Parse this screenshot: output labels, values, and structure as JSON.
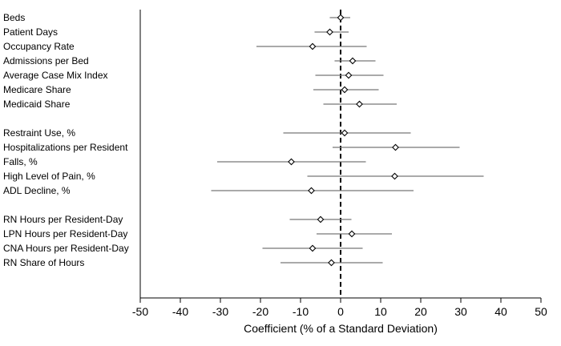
{
  "chart_data": {
    "type": "scatter",
    "title": "",
    "xlabel": "Coefficient (% of a Standard Deviation)",
    "ylabel": "",
    "xlim": [
      -50,
      50
    ],
    "xticks": [
      -50,
      -40,
      -30,
      -20,
      -10,
      0,
      10,
      20,
      30,
      40,
      50
    ],
    "reference_line": {
      "x": 0,
      "style": "dashed"
    },
    "marker": "diamond",
    "grid": false,
    "groups": [
      {
        "items": [
          {
            "label": "Beds",
            "estimate": 0.0,
            "ci_low": -2.7,
            "ci_high": 2.4
          },
          {
            "label": "Patient Days",
            "estimate": -2.7,
            "ci_low": -6.5,
            "ci_high": 2.0
          },
          {
            "label": "Occupancy Rate",
            "estimate": -7.0,
            "ci_low": -21.0,
            "ci_high": 6.5
          },
          {
            "label": "Admissions per Bed",
            "estimate": 3.0,
            "ci_low": -1.5,
            "ci_high": 8.7
          },
          {
            "label": "Average Case Mix Index",
            "estimate": 2.0,
            "ci_low": -6.3,
            "ci_high": 10.7
          },
          {
            "label": "Medicare Share",
            "estimate": 1.0,
            "ci_low": -6.8,
            "ci_high": 9.5
          },
          {
            "label": "Medicaid Share",
            "estimate": 4.7,
            "ci_low": -4.3,
            "ci_high": 14.0
          }
        ]
      },
      {
        "items": [
          {
            "label": "Restraint Use, %",
            "estimate": 1.0,
            "ci_low": -14.3,
            "ci_high": 17.5
          },
          {
            "label": "Hospitalizations per Resident",
            "estimate": 13.7,
            "ci_low": -2.0,
            "ci_high": 29.7
          },
          {
            "label": "Falls, %",
            "estimate": -12.3,
            "ci_low": -30.8,
            "ci_high": 6.3
          },
          {
            "label": "High Level of Pain, %",
            "estimate": 13.5,
            "ci_low": -8.3,
            "ci_high": 35.7
          },
          {
            "label": "ADL Decline, %",
            "estimate": -7.3,
            "ci_low": -32.3,
            "ci_high": 18.2
          }
        ]
      },
      {
        "items": [
          {
            "label": "RN Hours per Resident-Day",
            "estimate": -5.0,
            "ci_low": -12.7,
            "ci_high": 2.7
          },
          {
            "label": "LPN Hours per Resident-Day",
            "estimate": 2.8,
            "ci_low": -6.0,
            "ci_high": 12.8
          },
          {
            "label": "CNA Hours per Resident-Day",
            "estimate": -7.0,
            "ci_low": -19.5,
            "ci_high": 5.5
          },
          {
            "label": "RN Share of Hours",
            "estimate": -2.3,
            "ci_low": -15.0,
            "ci_high": 10.5
          }
        ]
      }
    ]
  }
}
